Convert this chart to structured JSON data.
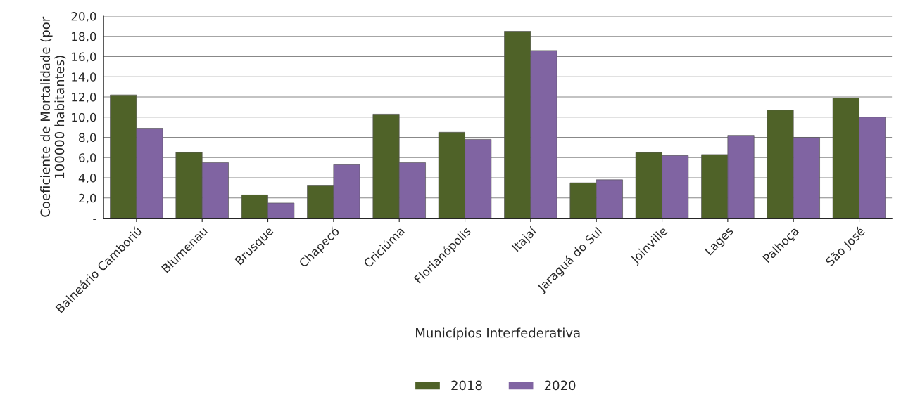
{
  "chart_data": {
    "type": "bar",
    "xlabel": "Municípios Interfederativa",
    "ylabel": "Coeficiente de Mortalidade (por 100000 habitantes)",
    "categories": [
      "Balneário Camboriú",
      "Blumenau",
      "Brusque",
      "Chapecó",
      "Criciúma",
      "Florianópolis",
      "Itajaí",
      "Jaraguá do Sul",
      "Joinville",
      "Lages",
      "Palhoça",
      "São José"
    ],
    "series": [
      {
        "name": "2018",
        "color": "#4f6228",
        "values": [
          12.2,
          6.5,
          2.3,
          3.2,
          10.3,
          8.5,
          18.5,
          3.5,
          6.5,
          6.3,
          10.7,
          11.9
        ]
      },
      {
        "name": "2020",
        "color": "#8064a2",
        "values": [
          8.9,
          5.5,
          1.5,
          5.3,
          5.5,
          7.8,
          16.6,
          3.8,
          6.2,
          8.2,
          8.0,
          10.0
        ]
      }
    ],
    "ylim": [
      0,
      20
    ],
    "yticks": [
      {
        "value": 0,
        "label": "-"
      },
      {
        "value": 2,
        "label": "2,0"
      },
      {
        "value": 4,
        "label": "4,0"
      },
      {
        "value": 6,
        "label": "6,0"
      },
      {
        "value": 8,
        "label": "8,0"
      },
      {
        "value": 10,
        "label": "10,0"
      },
      {
        "value": 12,
        "label": "12,0"
      },
      {
        "value": 14,
        "label": "14,0"
      },
      {
        "value": 16,
        "label": "16,0"
      },
      {
        "value": 18,
        "label": "18,0"
      },
      {
        "value": 20,
        "label": "20,0"
      }
    ],
    "grid": "y",
    "legend": "bottom"
  }
}
